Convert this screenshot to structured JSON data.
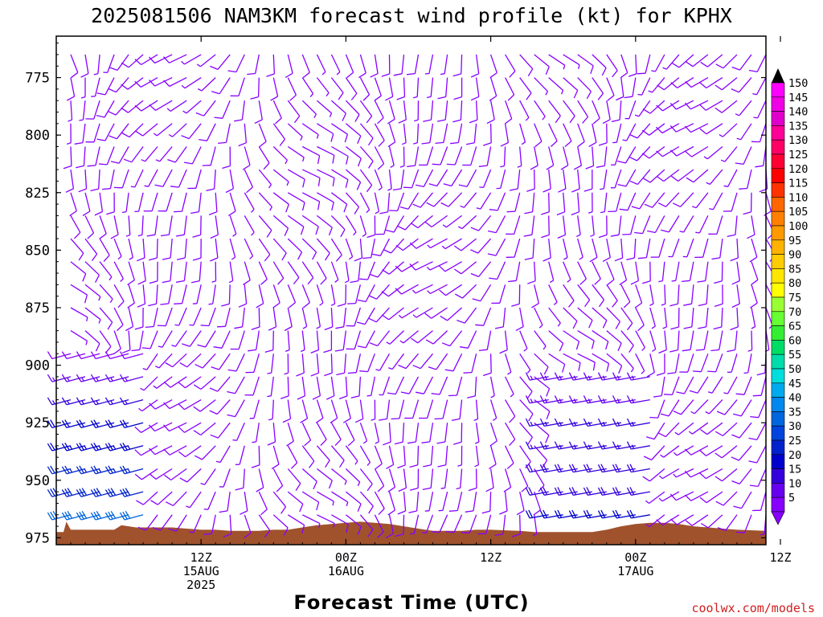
{
  "chart_data": {
    "type": "wind-barb time-height profile",
    "title": "2025081506 NAM3KM forecast wind profile (kt) for KPHX",
    "xlabel": "Forecast Time (UTC)",
    "ylabel": "",
    "y_axis": {
      "reversed": true,
      "range": [
        757,
        978
      ],
      "ticks": [
        775,
        800,
        825,
        850,
        875,
        900,
        925,
        950,
        975
      ]
    },
    "x_axis": {
      "range_hours": [
        -4,
        45
      ],
      "ticks": [
        {
          "hour": 6,
          "label": "12Z",
          "label2": "15AUG",
          "label3": "2025"
        },
        {
          "hour": 16,
          "label": "00Z",
          "label2": "16AUG",
          "label3": ""
        },
        {
          "hour": 26,
          "label": "12Z",
          "label2": "",
          "label3": ""
        },
        {
          "hour": 36,
          "label": "00Z",
          "label2": "17AUG",
          "label3": ""
        },
        {
          "hour": 46,
          "label": "12Z",
          "label2": "",
          "label3": ""
        }
      ]
    },
    "colorbar": {
      "values": [
        150,
        145,
        140,
        135,
        130,
        125,
        120,
        115,
        110,
        105,
        100,
        95,
        90,
        85,
        80,
        75,
        70,
        65,
        60,
        55,
        50,
        45,
        40,
        35,
        30,
        25,
        20,
        15,
        10,
        5
      ],
      "colors": [
        "#ff00ff",
        "#f000e6",
        "#e000cc",
        "#ff0099",
        "#ff0066",
        "#ff0033",
        "#ff0000",
        "#ff3300",
        "#ff6600",
        "#ff8000",
        "#ff9900",
        "#ffb300",
        "#ffcc00",
        "#ffe600",
        "#ffff00",
        "#99ff33",
        "#66ff33",
        "#33ee33",
        "#00dd66",
        "#00ddaa",
        "#00dddd",
        "#00aaee",
        "#0088ee",
        "#0066dd",
        "#0044dd",
        "#0022cc",
        "#0000cc",
        "#3300dd",
        "#6600ee",
        "#8800ff"
      ]
    },
    "terrain_color": "#a0522d",
    "barb_grid": {
      "times": [
        -3,
        -2,
        -1,
        0,
        1,
        2,
        3,
        4,
        5,
        6,
        7,
        8,
        9,
        10,
        11,
        12,
        13,
        14,
        15,
        16,
        17,
        18,
        19,
        20,
        21,
        22,
        23,
        24,
        25,
        26,
        27,
        28,
        29,
        30,
        31,
        32,
        33,
        34,
        35,
        36,
        37,
        38,
        39,
        40,
        41,
        42,
        43,
        44,
        45
      ],
      "levels": [
        765,
        775,
        785,
        795,
        805,
        815,
        825,
        835,
        845,
        855,
        865,
        875,
        885,
        895,
        905,
        915,
        925,
        935,
        945,
        955,
        965,
        975
      ],
      "note_direction_deg_from_north_speed_kt": true
    }
  },
  "credit": "coolwx.com/models"
}
